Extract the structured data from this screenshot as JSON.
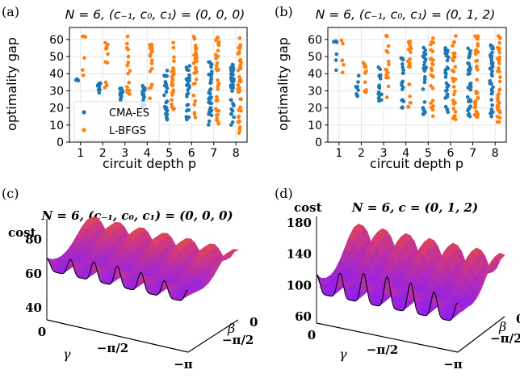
{
  "panels": [
    {
      "label": "(a)",
      "title": "N = 6, (c₋₁, c₀, c₁) = (0, 0, 0)",
      "ylabel": "optimality gap",
      "xlabel": "circuit depth p"
    },
    {
      "label": "(b)",
      "title": "N = 6, (c₋₁, c₀, c₁) = (0, 1, 2)",
      "ylabel": "optimality gap",
      "xlabel": "circuit depth p"
    },
    {
      "label": "(c)",
      "title": "N = 6, (c₋₁, c₀, c₁) = (0, 0, 0)",
      "zlabel": "cost",
      "gamma": "γ",
      "beta": "β"
    },
    {
      "label": "(d)",
      "title": "N = 6, c = (0, 1, 2)",
      "zlabel": "cost",
      "gamma": "γ",
      "beta": "β"
    }
  ],
  "legend": [
    "CMA-ES",
    "L-BFGS"
  ],
  "colors": {
    "cma": "#1f77b4",
    "lbfgs": "#ff7f0e",
    "surface_low": "#8a1cff",
    "surface_high": "#f5b30a"
  },
  "chart_data": [
    {
      "type": "scatter",
      "title": "N = 6, (c₋₁, c₀, c₁) = (0, 0, 0)",
      "xlabel": "circuit depth p",
      "ylabel": "optimality gap",
      "xticks": [
        1,
        2,
        3,
        4,
        5,
        6,
        7,
        8
      ],
      "yticks": [
        0,
        10,
        20,
        30,
        40,
        50,
        60
      ],
      "xlim": [
        0.5,
        8.5
      ],
      "ylim": [
        0,
        67
      ],
      "legend_position": "lower-left",
      "series": [
        {
          "name": "CMA-ES",
          "ranges": [
            [
              36,
              37
            ],
            [
              28,
              35
            ],
            [
              24,
              32
            ],
            [
              20,
              33
            ],
            [
              13,
              42
            ],
            [
              12,
              45
            ],
            [
              10,
              47
            ],
            [
              10,
              47
            ]
          ]
        },
        {
          "name": "L-BFGS",
          "ranges": [
            [
              37,
              63
            ],
            [
              30,
              65
            ],
            [
              28,
              62
            ],
            [
              24,
              62
            ],
            [
              15,
              61
            ],
            [
              12,
              62
            ],
            [
              10,
              62
            ],
            [
              5,
              61
            ]
          ]
        }
      ]
    },
    {
      "type": "scatter",
      "title": "N = 6, (c₋₁, c₀, c₁) = (0, 1, 2)",
      "xlabel": "circuit depth p",
      "ylabel": "optimality gap",
      "xticks": [
        1,
        2,
        3,
        4,
        5,
        6,
        7,
        8
      ],
      "yticks": [
        0,
        10,
        20,
        30,
        40,
        50,
        60
      ],
      "xlim": [
        0.5,
        8.5
      ],
      "ylim": [
        0,
        67
      ],
      "series": [
        {
          "name": "CMA-ES",
          "ranges": [
            [
              41,
              60
            ],
            [
              26,
              42
            ],
            [
              24,
              45
            ],
            [
              20,
              50
            ],
            [
              16,
              56
            ],
            [
              16,
              57
            ],
            [
              15,
              57
            ],
            [
              15,
              57
            ]
          ]
        },
        {
          "name": "L-BFGS",
          "ranges": [
            [
              40,
              62
            ],
            [
              25,
              63
            ],
            [
              22,
              63
            ],
            [
              20,
              63
            ],
            [
              14,
              63
            ],
            [
              13,
              62
            ],
            [
              12,
              63
            ],
            [
              10,
              63
            ]
          ]
        }
      ]
    },
    {
      "type": "surface",
      "title": "N = 6, (c₋₁, c₀, c₁) = (0, 0, 0)",
      "zlabel": "cost",
      "zticks": [
        40,
        60,
        80
      ],
      "zlim": [
        33,
        92
      ],
      "gamma_ticks": [
        "0",
        "−π/2",
        "−π"
      ],
      "beta_ticks": [
        "−π/2",
        "0"
      ],
      "surface": {
        "base": 62,
        "ridge": 88,
        "peaks": 12
      }
    },
    {
      "type": "surface",
      "title": "N = 6, c = (0, 1, 2)",
      "zlabel": "cost",
      "zticks": [
        60,
        100,
        140,
        180
      ],
      "zlim": [
        52,
        188
      ],
      "gamma_ticks": [
        "0",
        "−π/2",
        "−π"
      ],
      "beta_ticks": [
        "−π/2",
        "0"
      ],
      "surface": {
        "base": 90,
        "ridge": 178,
        "peaks": 12
      }
    }
  ]
}
